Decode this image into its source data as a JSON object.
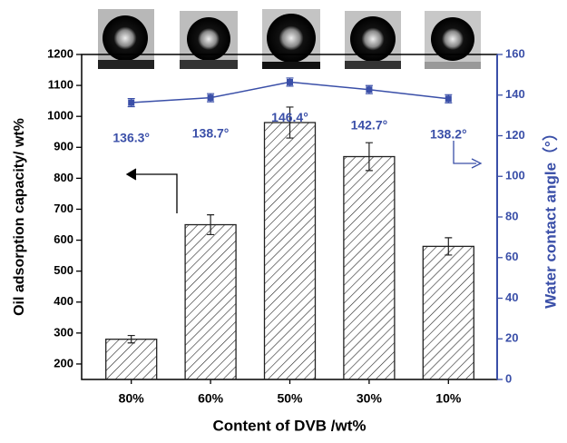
{
  "chart_data": {
    "type": "bar",
    "x_label": "Content of DVB /wt%",
    "y_label": "Oil adsorption capacity/ wt%",
    "y2_label": "Water contact angle（°）",
    "categories": [
      "80%",
      "60%",
      "50%",
      "30%",
      "10%"
    ],
    "ylim": [
      150,
      1200
    ],
    "yticks": [
      200,
      300,
      400,
      500,
      600,
      700,
      800,
      900,
      1000,
      1100,
      1200
    ],
    "y2lim": [
      0,
      160
    ],
    "y2ticks": [
      0,
      20,
      40,
      60,
      80,
      100,
      120,
      140,
      160
    ],
    "series": [
      {
        "type": "bar",
        "color": "#222222",
        "values": [
          280,
          650,
          980,
          870,
          580
        ],
        "errors": [
          12,
          32,
          50,
          45,
          28
        ]
      },
      {
        "type": "line",
        "axis": "y2",
        "color": "#3a4fa8",
        "values": [
          136.3,
          138.7,
          146.4,
          142.7,
          138.2
        ],
        "errors": [
          2,
          2,
          2,
          2,
          2
        ],
        "value_labels": [
          "136.3°",
          "138.7°",
          "146.4°",
          "142.7°",
          "138.2°"
        ]
      }
    ]
  }
}
